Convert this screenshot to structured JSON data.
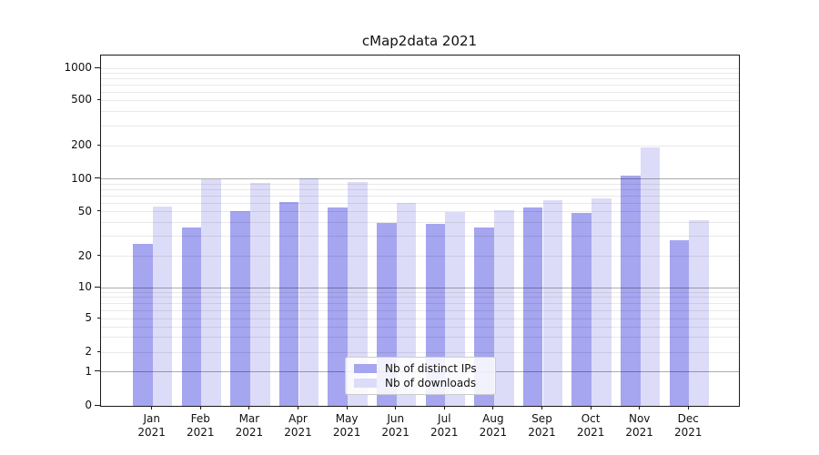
{
  "title": "cMap2data 2021",
  "chart_data": {
    "type": "bar",
    "title": "cMap2data 2021",
    "categories": [
      "Jan",
      "Feb",
      "Mar",
      "Apr",
      "May",
      "Jun",
      "Jul",
      "Aug",
      "Sep",
      "Oct",
      "Nov",
      "Dec"
    ],
    "year_label": "2021",
    "series": [
      {
        "name": "Nb of distinct IPs",
        "color": "#a5a5f0",
        "values": [
          26,
          36,
          51,
          62,
          55,
          40,
          39,
          36,
          55,
          49,
          108,
          28
        ]
      },
      {
        "name": "Nb of downloads",
        "color": "#dcdcf8",
        "values": [
          56,
          100,
          92,
          102,
          94,
          60,
          50,
          52,
          64,
          66,
          193,
          42
        ]
      }
    ],
    "yscale": "symlog",
    "yticks": [
      0,
      1,
      2,
      5,
      10,
      20,
      50,
      100,
      200,
      500,
      1000
    ],
    "ylim": [
      0,
      1000
    ],
    "grid": "horizontal major and log-minor gridlines",
    "legend_position": "lower center",
    "xlabel": "",
    "ylabel": ""
  }
}
